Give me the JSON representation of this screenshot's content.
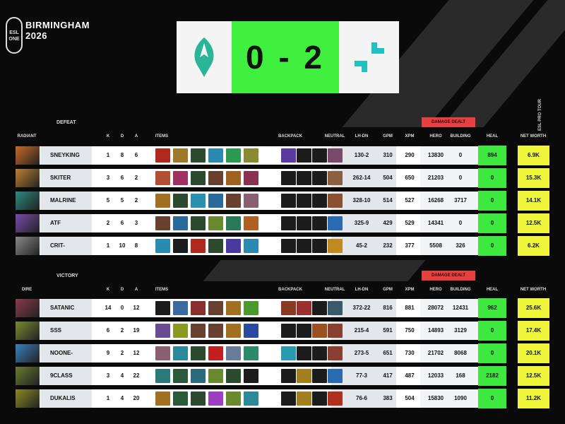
{
  "event": {
    "brand": "ESL ONE",
    "name": "BIRMINGHAM",
    "year": "2026",
    "tour": "ESL PRO TOUR"
  },
  "score": {
    "value": "0 - 2",
    "left_team_color": "#2bb597",
    "right_team_color": "#1fc2c0",
    "score_bg": "#3ff03f"
  },
  "columns": {
    "k": "K",
    "d": "D",
    "a": "A",
    "items": "ITEMS",
    "backpack": "BACKPACK",
    "neutral": "NEUTRAL",
    "lhdn": "LH-DN",
    "gpm": "GPM",
    "xpm": "XPM",
    "hero": "HERO",
    "building": "BUILDING",
    "heal": "HEAL",
    "networth": "NET WORTH",
    "damage": "DAMAGE DEALT"
  },
  "radiant": {
    "side": "RADIANT",
    "result": "DEFEAT",
    "players": [
      {
        "name": "SNEYKING",
        "k": "1",
        "d": "8",
        "a": "6",
        "lhdn": "130-2",
        "gpm": "310",
        "xpm": "290",
        "hero": "13830",
        "building": "0",
        "heal": "894",
        "nw": "6.9K",
        "hero_color": "#c86a20",
        "items": [
          "#b02a20",
          "#a0782a",
          "#2b4a2e",
          "#2a8ab0",
          "#2a9a50",
          "#8a8a30"
        ],
        "backpack": [
          "#5a3aa0",
          null,
          null
        ],
        "neutral": "#7a4a6a"
      },
      {
        "name": "SKITER",
        "k": "3",
        "d": "6",
        "a": "2",
        "lhdn": "262-14",
        "gpm": "504",
        "xpm": "650",
        "hero": "21203",
        "building": "0",
        "heal": "0",
        "nw": "15.3K",
        "hero_color": "#c08030",
        "items": [
          "#b05030",
          "#a03060",
          "#2b4a2e",
          "#6a4030",
          "#a06020",
          "#8a3050"
        ],
        "backpack": [
          null,
          null,
          null
        ],
        "neutral": "#8a6040"
      },
      {
        "name": "MALRINE",
        "k": "5",
        "d": "5",
        "a": "2",
        "lhdn": "328-10",
        "gpm": "514",
        "xpm": "527",
        "hero": "16268",
        "building": "3717",
        "heal": "0",
        "nw": "14.1K",
        "hero_color": "#2a8a80",
        "items": [
          "#a07020",
          "#2b4a2e",
          "#2a90b0",
          "#2a6a9a",
          "#6a4030",
          "#8a6070"
        ],
        "backpack": [
          null,
          null,
          null
        ],
        "neutral": "#8a5030"
      },
      {
        "name": "ATF",
        "k": "2",
        "d": "6",
        "a": "3",
        "lhdn": "325-9",
        "gpm": "429",
        "xpm": "529",
        "hero": "14341",
        "building": "0",
        "heal": "0",
        "nw": "12.5K",
        "hero_color": "#7a4ab0",
        "items": [
          "#6a4030",
          "#2a6a9a",
          "#2b4a2e",
          "#6a8a30",
          "#2a7a5a",
          "#b06020"
        ],
        "backpack": [
          null,
          null,
          null
        ],
        "neutral": "#2a6ab0"
      },
      {
        "name": "CRIT-",
        "k": "1",
        "d": "10",
        "a": "8",
        "lhdn": "45-2",
        "gpm": "232",
        "xpm": "377",
        "hero": "5508",
        "building": "326",
        "heal": "0",
        "nw": "6.2K",
        "hero_color": "#8a8a8a",
        "items": [
          "#2a8ab0",
          null,
          "#b02a20",
          "#2b4a2e",
          "#4a3aa0",
          "#2a8ab0"
        ],
        "backpack": [
          null,
          null,
          null
        ],
        "neutral": "#c08a20"
      }
    ]
  },
  "dire": {
    "side": "DIRE",
    "result": "VICTORY",
    "players": [
      {
        "name": "SATANIC",
        "k": "14",
        "d": "0",
        "a": "12",
        "lhdn": "372-22",
        "gpm": "816",
        "xpm": "881",
        "hero": "28072",
        "building": "12431",
        "heal": "962",
        "nw": "25.6K",
        "hero_color": "#8a3a50",
        "items": [
          null,
          "#3a6aa0",
          "#8a3030",
          "#6a4030",
          "#a07020",
          "#4a9a30"
        ],
        "backpack": [
          "#8a3a20",
          "#9a3030",
          null,
          "#3a5a6a"
        ],
        "neutral": null
      },
      {
        "name": "SSS",
        "k": "6",
        "d": "2",
        "a": "19",
        "lhdn": "215-4",
        "gpm": "591",
        "xpm": "750",
        "hero": "14893",
        "building": "3129",
        "heal": "0",
        "nw": "17.4K",
        "hero_color": "#7a8a30",
        "items": [
          "#6a4a90",
          "#8a9a20",
          "#6a4030",
          "#6a4030",
          "#a07020",
          "#2a4aa0"
        ],
        "backpack": [
          null,
          null,
          "#9a5020",
          "#8a4030"
        ],
        "neutral": null
      },
      {
        "name": "NOONE-",
        "k": "9",
        "d": "2",
        "a": "12",
        "lhdn": "273-5",
        "gpm": "651",
        "xpm": "730",
        "hero": "21702",
        "building": "8068",
        "heal": "0",
        "nw": "20.1K",
        "hero_color": "#3a80c0",
        "items": [
          "#8a6070",
          "#2a8a9a",
          "#2b4a2e",
          "#c02020",
          "#6a7a9a",
          "#2a8a6a"
        ],
        "backpack": [
          "#2a9ab0",
          null,
          null,
          "#8a4030"
        ],
        "neutral": null
      },
      {
        "name": "9CLASS",
        "k": "3",
        "d": "4",
        "a": "22",
        "lhdn": "77-3",
        "gpm": "417",
        "xpm": "487",
        "hero": "12033",
        "building": "168",
        "heal": "2182",
        "nw": "12.5K",
        "hero_color": "#6a7a30",
        "items": [
          "#2a7a7a",
          "#2a5a3a",
          "#2a6a7a",
          "#6a8a30",
          "#2b4a2e",
          null
        ],
        "backpack": [
          null,
          "#a08020",
          null,
          "#2a6ab0"
        ],
        "neutral": null
      },
      {
        "name": "DUKALIS",
        "k": "1",
        "d": "4",
        "a": "20",
        "lhdn": "76-6",
        "gpm": "383",
        "xpm": "504",
        "hero": "15830",
        "building": "1090",
        "heal": "0",
        "nw": "11.2K",
        "hero_color": "#8a8a20",
        "items": [
          "#a07020",
          "#2a5a3a",
          "#2b4a2e",
          "#9a40c0",
          "#6a8a30",
          "#2a8a9a"
        ],
        "backpack": [
          null,
          "#a08020",
          null,
          "#b03020"
        ],
        "neutral": null
      }
    ]
  }
}
